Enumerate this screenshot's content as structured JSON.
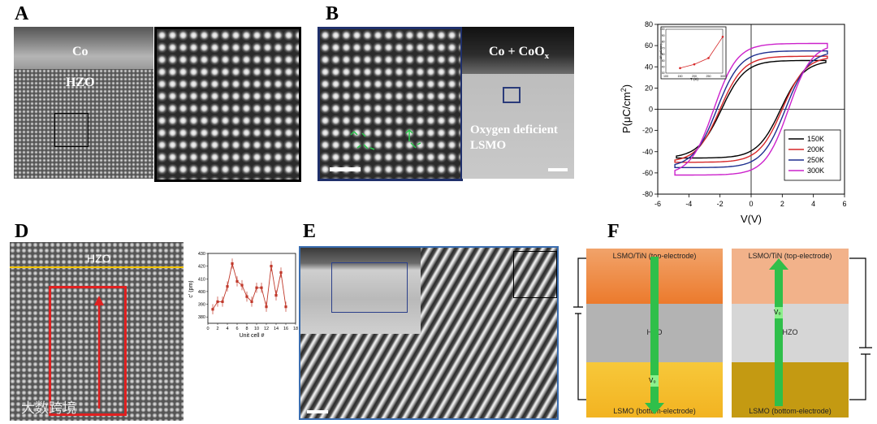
{
  "panels": {
    "A": {
      "label": "A",
      "top_layer": "Co",
      "film": "HZO"
    },
    "B": {
      "label": "B",
      "top_layer_main": "Co + CoO",
      "top_layer_sub": "x",
      "substrate_line1": "Oxygen deficient",
      "substrate_line2": "LSMO"
    },
    "C": {
      "ylabel_main": "P(μC/cm",
      "ylabel_sup": "2",
      "ylabel_end": ")",
      "xlabel": "V(V)",
      "inset_xlabel": "T (K)",
      "inset_ylabel": "2P (μC/cm²)",
      "legend": [
        "150K",
        "200K",
        "250K",
        "300K"
      ],
      "colors": {
        "150K": "#000000",
        "200K": "#d62728",
        "250K": "#1f2f8f",
        "300K": "#cc22cc"
      }
    },
    "D": {
      "label": "D",
      "film": "HZO",
      "inset_xlabel": "Unit cell #",
      "inset_ylabel": "c' (pm)"
    },
    "E": {
      "label": "E"
    },
    "F": {
      "label": "F",
      "left": {
        "top": "LSMO/TiN (top-electrode)",
        "mid": "HZO",
        "bottom": "LSMO (bottom-electrode)",
        "arrow_label": "V₀"
      },
      "right": {
        "top": "LSMO/TiN (top-electrode)",
        "mid": "HZO",
        "bottom": "LSMO (bottom-electrode)",
        "arrow_label": "V₀"
      }
    },
    "watermark": "大数跨境"
  },
  "chart_data": [
    {
      "type": "line",
      "xlabel": "V(V)",
      "ylabel": "P(μC/cm2)",
      "xlim": [
        -6,
        6
      ],
      "ylim": [
        -80,
        80
      ],
      "xticks": [
        -6,
        -4,
        -2,
        0,
        2,
        4,
        6
      ],
      "yticks": [
        -80,
        -60,
        -40,
        -20,
        0,
        20,
        40,
        60,
        80
      ],
      "legend_position": "bottom-right",
      "series": [
        {
          "name": "150K",
          "vmax": 4.8,
          "pmax": 46,
          "pr": 18,
          "vc": 1.9,
          "pmin": -48
        },
        {
          "name": "200K",
          "vmax": 4.9,
          "pmax": 50,
          "pr": 22,
          "vc": 2.0,
          "pmin": -51
        },
        {
          "name": "250K",
          "vmax": 4.9,
          "pmax": 55,
          "pr": 26,
          "vc": 2.2,
          "pmin": -55
        },
        {
          "name": "300K",
          "vmax": 4.9,
          "pmax": 62,
          "pr": 30,
          "vc": 2.4,
          "pmin": -63
        }
      ],
      "inset": {
        "type": "line",
        "xlabel": "T (K)",
        "ylabel": "2P (μC/cm²)",
        "xlim": [
          100,
          300
        ],
        "ylim": [
          30,
          100
        ],
        "xticks": [
          100,
          150,
          200,
          250,
          300
        ],
        "yticks": [
          30,
          40,
          50,
          60,
          70,
          80,
          90,
          100
        ],
        "x": [
          150,
          200,
          250,
          300
        ],
        "values": [
          38,
          44,
          54,
          88
        ]
      }
    },
    {
      "type": "line",
      "xlabel": "Unit cell #",
      "ylabel": "c' (pm)",
      "xlim": [
        0,
        18
      ],
      "ylim": [
        375,
        430
      ],
      "xticks": [
        0,
        2,
        4,
        6,
        8,
        10,
        12,
        14,
        16,
        18
      ],
      "yticks": [
        380,
        390,
        400,
        410,
        420,
        430
      ],
      "x": [
        1,
        2,
        3,
        4,
        5,
        6,
        7,
        8,
        9,
        10,
        11,
        12,
        13,
        14,
        15,
        16
      ],
      "values": [
        386,
        392,
        392,
        404,
        422,
        408,
        405,
        396,
        392,
        403,
        403,
        388,
        420,
        397,
        415,
        388
      ],
      "errors": [
        4,
        4,
        4,
        4,
        4,
        4,
        4,
        4,
        4,
        4,
        4,
        4,
        4,
        4,
        4,
        4
      ]
    }
  ]
}
